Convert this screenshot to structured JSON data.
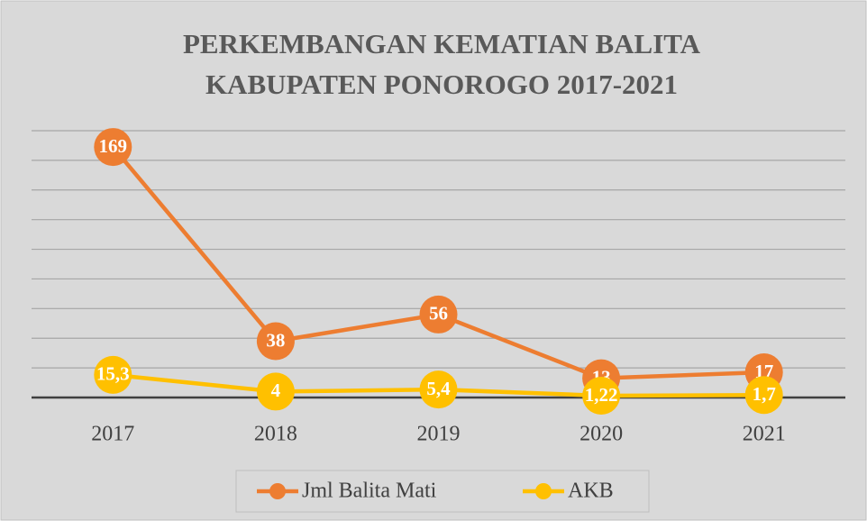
{
  "chart_data": {
    "type": "line",
    "title": [
      "PERKEMBANGAN KEMATIAN BALITA",
      "KABUPATEN PONOROGO 2017-2021"
    ],
    "categories": [
      "2017",
      "2018",
      "2019",
      "2020",
      "2021"
    ],
    "series": [
      {
        "name": "Jml Balita Mati",
        "color": "#ed7d31",
        "values": [
          169,
          38,
          56,
          13,
          17
        ]
      },
      {
        "name": "AKB",
        "color": "#ffc000",
        "values": [
          15.3,
          4,
          5.4,
          1.22,
          1.7
        ],
        "value_labels": [
          "15,3",
          "4",
          "5,4",
          "1,22",
          "1,7"
        ]
      }
    ],
    "ylim": [
      0,
      180
    ],
    "yticks": [
      0,
      20,
      40,
      60,
      80,
      100,
      120,
      140,
      160,
      180
    ],
    "grid": true,
    "legend": "bottom"
  }
}
